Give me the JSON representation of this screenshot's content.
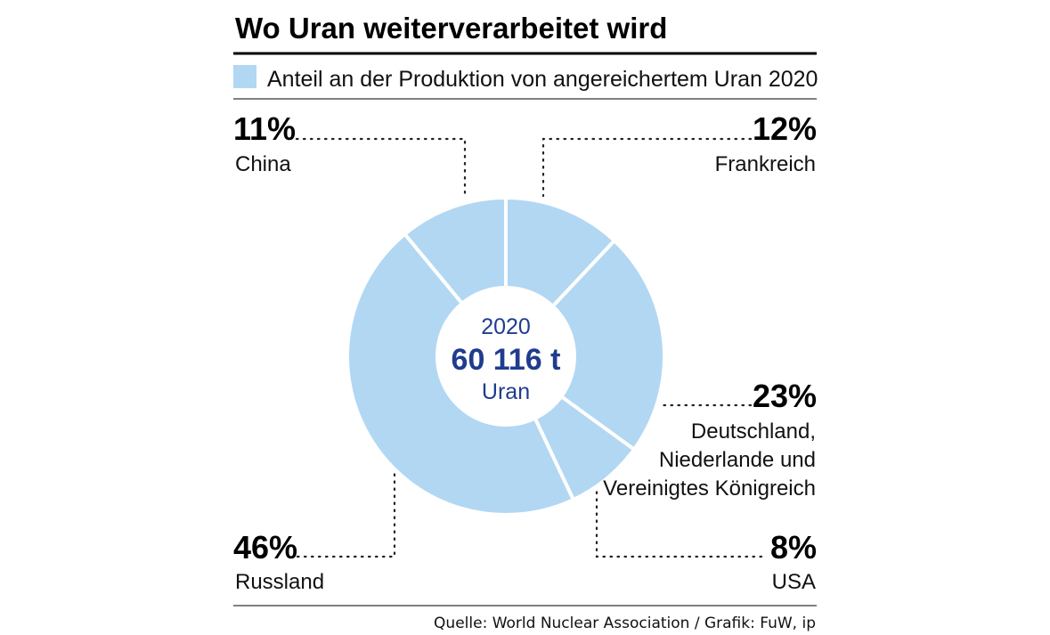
{
  "header": {
    "title": "Wo Uran weiterverarbeitet wird",
    "legend_label": "Anteil an der Produktion von angereichertem Uran 2020"
  },
  "colors": {
    "slice": "#b1d7f3",
    "accent_text": "#1f3c8f",
    "rule": "#000000"
  },
  "center": {
    "year": "2020",
    "total": "60 116 t",
    "unit": "Uran"
  },
  "chart_data": {
    "type": "pie",
    "variant": "donut",
    "title": "Wo Uran weiterverarbeitet wird",
    "legend": [
      "Anteil an der Produktion von angereichertem Uran 2020"
    ],
    "series": [
      {
        "name": "Anteil an der Produktion von angereichertem Uran 2020",
        "slices": [
          {
            "key": "frankreich",
            "pct_label": "12%",
            "value": 12,
            "label_lines": [
              "Frankreich"
            ]
          },
          {
            "key": "deutschland",
            "pct_label": "23%",
            "value": 23,
            "label_lines": [
              "Deutschland,",
              "Niederlande und",
              "Vereinigtes Königreich"
            ]
          },
          {
            "key": "usa",
            "pct_label": "8%",
            "value": 8,
            "label_lines": [
              "USA"
            ]
          },
          {
            "key": "russland",
            "pct_label": "46%",
            "value": 46,
            "label_lines": [
              "Russland"
            ]
          },
          {
            "key": "china",
            "pct_label": "11%",
            "value": 11,
            "label_lines": [
              "China"
            ]
          }
        ]
      }
    ],
    "total_label": "60 116 t",
    "unit": "Uran",
    "year": "2020"
  },
  "footer": {
    "source": "Quelle: World Nuclear Association / Grafik: FuW, ip"
  }
}
